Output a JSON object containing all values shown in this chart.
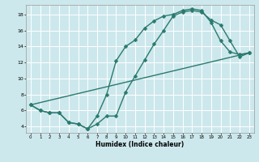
{
  "xlabel": "Humidex (Indice chaleur)",
  "bg_color": "#cde8ec",
  "grid_color": "#ffffff",
  "line_color": "#2a7a6e",
  "markersize": 2.5,
  "linewidth": 1.0,
  "xlim": [
    -0.5,
    23.5
  ],
  "ylim": [
    3.2,
    19.2
  ],
  "xticks": [
    0,
    1,
    2,
    3,
    4,
    5,
    6,
    7,
    8,
    9,
    10,
    11,
    12,
    13,
    14,
    15,
    16,
    17,
    18,
    19,
    20,
    21,
    22,
    23
  ],
  "yticks": [
    4,
    6,
    8,
    10,
    12,
    14,
    16,
    18
  ],
  "curve1_x": [
    0,
    1,
    2,
    3,
    4,
    5,
    6,
    7,
    8,
    9,
    10,
    11,
    12,
    13,
    14,
    15,
    16,
    17,
    18,
    19,
    20,
    21,
    22,
    23
  ],
  "curve1_y": [
    6.7,
    6.0,
    5.7,
    5.7,
    4.5,
    4.3,
    3.7,
    5.3,
    8.0,
    12.2,
    14.0,
    14.8,
    16.3,
    17.2,
    17.8,
    18.0,
    18.5,
    18.7,
    18.5,
    17.0,
    14.7,
    13.3,
    13.0,
    13.2
  ],
  "curve2_x": [
    0,
    1,
    2,
    3,
    4,
    5,
    6,
    7,
    8,
    9,
    10,
    11,
    12,
    13,
    14,
    15,
    16,
    17,
    18,
    19,
    20,
    21,
    22,
    23
  ],
  "curve2_y": [
    6.7,
    6.0,
    5.7,
    5.7,
    4.5,
    4.3,
    3.7,
    4.3,
    5.3,
    5.3,
    8.3,
    10.3,
    12.3,
    14.3,
    16.0,
    17.8,
    18.3,
    18.5,
    18.3,
    17.3,
    16.7,
    14.7,
    12.7,
    13.2
  ],
  "curve3_x": [
    0,
    23
  ],
  "curve3_y": [
    6.7,
    13.2
  ]
}
